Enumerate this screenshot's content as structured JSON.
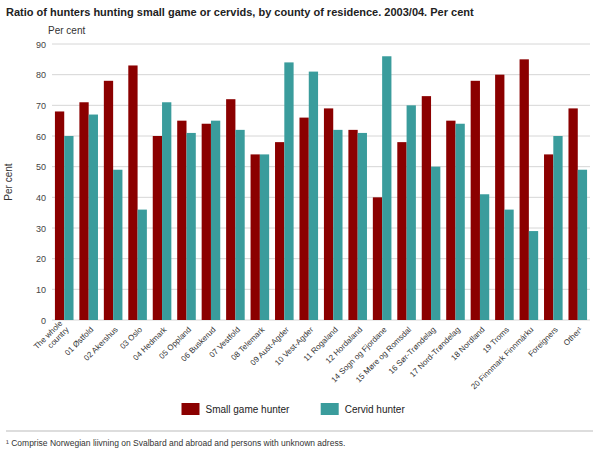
{
  "chart_data": {
    "type": "bar",
    "title": "Ratio of hunters hunting small game or cervids, by county of residence. 2003/04. Per cent",
    "ylabel": "Per cent",
    "footnote": "¹ Comprise Norwegian liivning on Svalbard and abroad and persons with unknown adress.",
    "categories": [
      "The whole\ncountry",
      "01 Østfold",
      "02 Akershus",
      "03 Oslo",
      "04 Hedmark",
      "05 Oppland",
      "06 Buskerud",
      "07 Vestfold",
      "08 Telemark",
      "09 Aust-Agder",
      "10 Vest-Agder",
      "11 Rogaland",
      "12 Hordaland",
      "14 Sogn og Fjordane",
      "15 Møre og Romsdal",
      "16 Sør-Trøndelag",
      "17 Nord-Trøndelag",
      "18 Nordland",
      "19 Troms",
      "20 Finnmark Finnmárku",
      "Foreigners",
      "Other¹"
    ],
    "series": [
      {
        "name": "Small game hunter",
        "color": "#8B0000",
        "values": [
          68,
          71,
          78,
          83,
          60,
          65,
          64,
          72,
          54,
          58,
          66,
          69,
          62,
          40,
          58,
          73,
          65,
          78,
          80,
          85,
          54,
          69
        ]
      },
      {
        "name": "Cervid hunter",
        "color": "#3A9C9C",
        "values": [
          60,
          67,
          49,
          36,
          71,
          61,
          65,
          62,
          54,
          84,
          81,
          62,
          61,
          86,
          70,
          50,
          64,
          41,
          36,
          29,
          60,
          49
        ]
      }
    ],
    "ylim": [
      0,
      90
    ],
    "yticks": [
      0,
      10,
      20,
      30,
      40,
      50,
      60,
      70,
      80,
      90
    ],
    "grid": true,
    "legend": "bottom"
  }
}
